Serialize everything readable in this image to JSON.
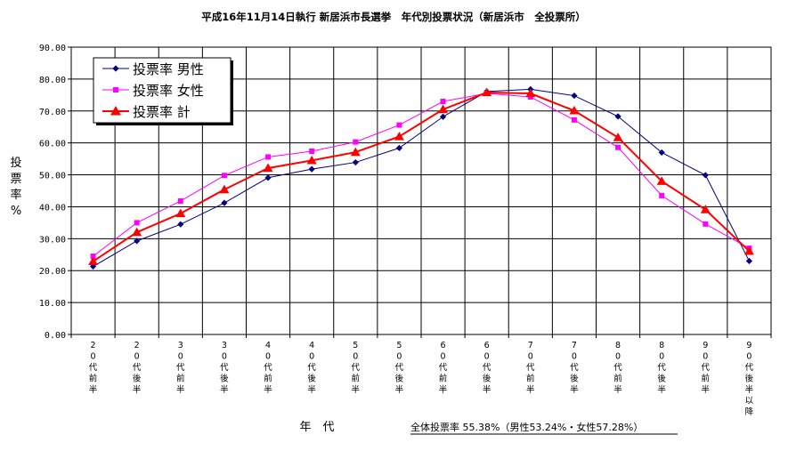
{
  "chart_data": {
    "type": "line",
    "title": "平成16年11月14日執行 新居浜市長選挙　年代別投票状況（新居浜市　全投票所）",
    "xlabel": "年　代",
    "ylabel": "投票率%",
    "ylim": [
      0,
      90
    ],
    "yticks": [
      "0.00",
      "10.00",
      "20.00",
      "30.00",
      "40.00",
      "50.00",
      "60.00",
      "70.00",
      "80.00",
      "90.00"
    ],
    "grid": true,
    "legend_position": "top-left",
    "categories": [
      "20代前半",
      "20代後半",
      "30代前半",
      "30代後半",
      "40代前半",
      "40代後半",
      "50代前半",
      "50代後半",
      "60代前半",
      "60代後半",
      "70代前半",
      "70代後半",
      "80代前半",
      "80代後半",
      "90代前半",
      "90代後半以降"
    ],
    "series": [
      {
        "name": "投票率 男性",
        "color": "#000080",
        "marker": "diamond",
        "values": [
          21.3,
          29.3,
          34.5,
          41.2,
          49.1,
          51.8,
          53.9,
          58.4,
          68.2,
          76.1,
          76.8,
          74.8,
          68.3,
          57.0,
          49.9,
          23.0
        ]
      },
      {
        "name": "投票率 女性",
        "color": "#ff00ff",
        "marker": "square",
        "values": [
          24.5,
          35.0,
          41.8,
          49.8,
          55.6,
          57.4,
          60.3,
          65.6,
          73.0,
          75.5,
          74.4,
          67.2,
          58.6,
          43.5,
          34.6,
          27.0
        ]
      },
      {
        "name": "投票率 計",
        "color": "#ff0000",
        "marker": "triangle",
        "values": [
          22.9,
          32.0,
          37.9,
          45.4,
          52.1,
          54.5,
          57.1,
          62.0,
          70.5,
          75.8,
          75.5,
          70.1,
          61.7,
          48.0,
          39.1,
          26.1
        ]
      }
    ],
    "annotation": "全体投票率 55.38%（男性53.24%・女性57.28%）"
  }
}
